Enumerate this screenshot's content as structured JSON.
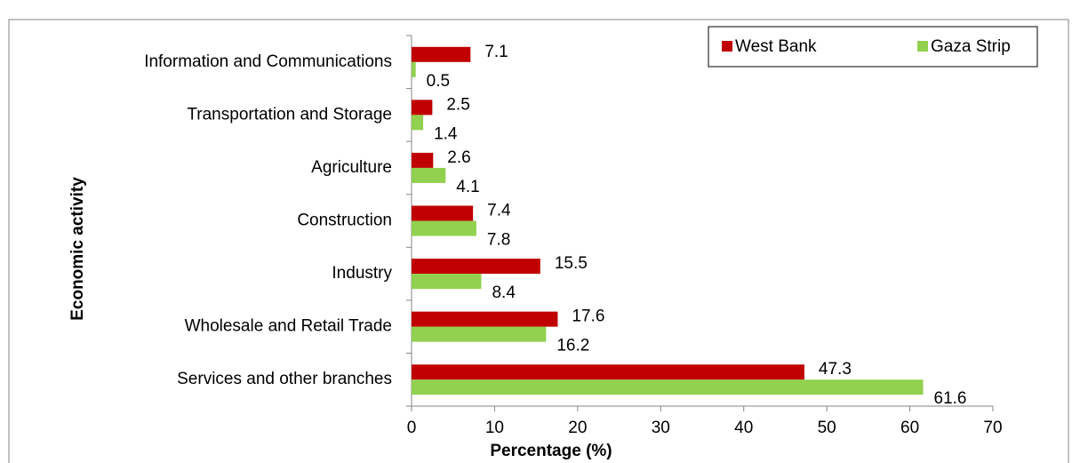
{
  "chart_data": {
    "type": "bar",
    "orientation": "horizontal",
    "x_label": "Percentage (%)",
    "y_label": "Economic activity",
    "categories": [
      "Information and Communications",
      "Transportation and Storage",
      "Agriculture",
      "Construction",
      "Industry",
      "Wholesale and Retail Trade",
      "Services and other branches"
    ],
    "series": [
      {
        "name": "West Bank",
        "color": "#c00000",
        "values": [
          7.1,
          2.5,
          2.6,
          7.4,
          15.5,
          17.6,
          47.3
        ]
      },
      {
        "name": "Gaza Strip",
        "color": "#92d050",
        "values": [
          0.5,
          1.4,
          4.1,
          7.8,
          8.4,
          16.2,
          61.6
        ]
      }
    ],
    "xlim": [
      0,
      70
    ],
    "xticks": [
      0,
      10,
      20,
      30,
      40,
      50,
      60,
      70
    ],
    "legend": "top-right"
  }
}
